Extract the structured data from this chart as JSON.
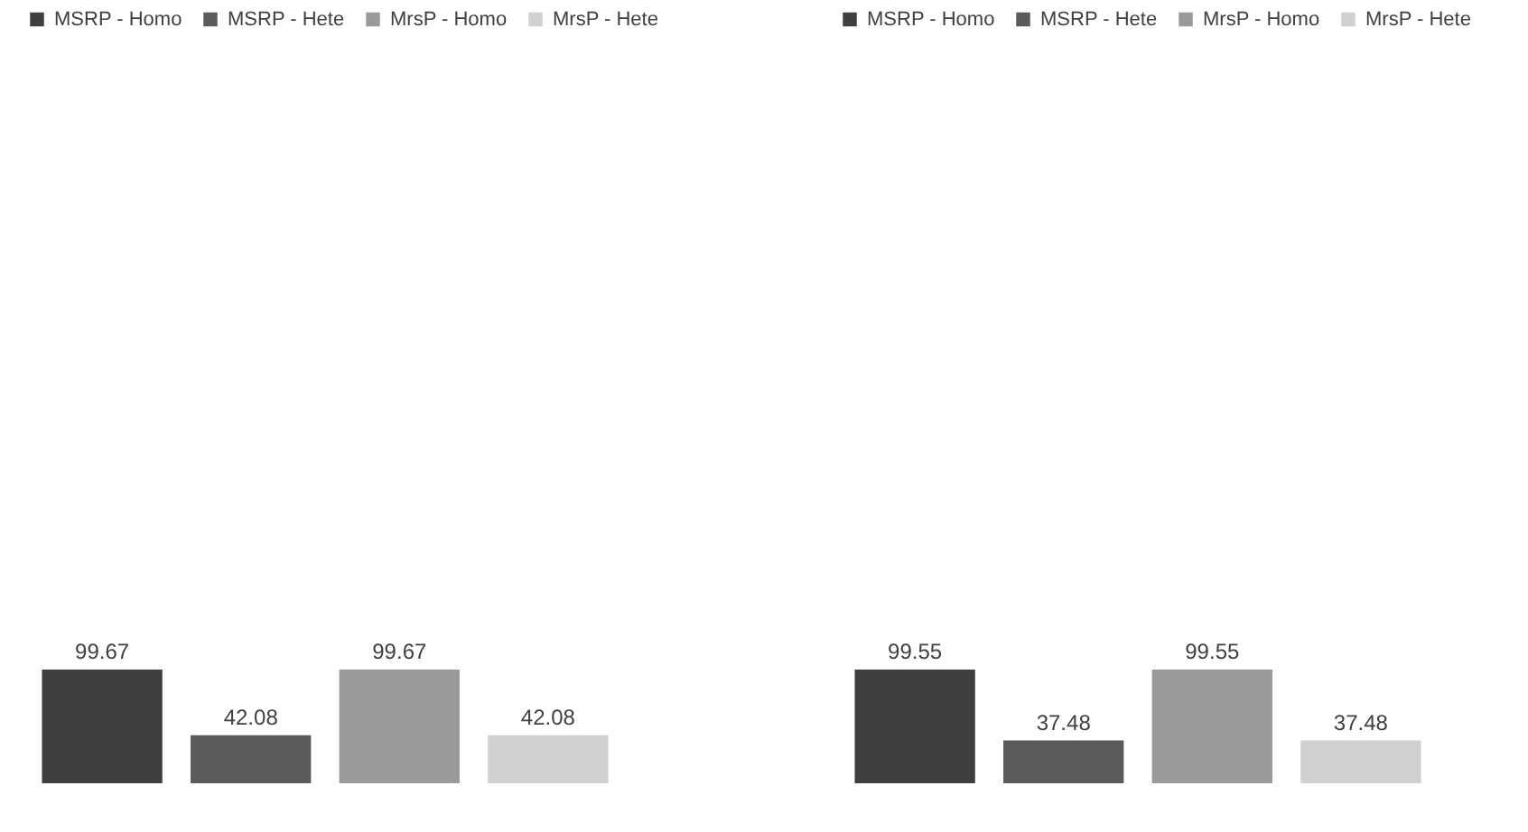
{
  "chart_data": [
    {
      "type": "bar",
      "categories": [
        null
      ],
      "legend": "top",
      "data_labels": true,
      "series": [
        {
          "name": "MSRP - Homo",
          "color": "#3f3f3f",
          "values": [
            99.67
          ]
        },
        {
          "name": "MSRP - Hete",
          "color": "#5b5b5b",
          "values": [
            42.08
          ]
        },
        {
          "name": "MrsP - Homo",
          "color": "#9a9a9a",
          "values": [
            99.67
          ]
        },
        {
          "name": "MrsP - Hete",
          "color": "#d0d0d0",
          "values": [
            42.08
          ]
        }
      ]
    },
    {
      "type": "bar",
      "categories": [
        null
      ],
      "legend": "top",
      "data_labels": true,
      "series": [
        {
          "name": "MSRP - Homo",
          "color": "#3f3f3f",
          "values": [
            99.55
          ]
        },
        {
          "name": "MSRP - Hete",
          "color": "#5b5b5b",
          "values": [
            37.48
          ]
        },
        {
          "name": "MrsP - Homo",
          "color": "#9a9a9a",
          "values": [
            99.55
          ]
        },
        {
          "name": "MrsP - Hete",
          "color": "#d0d0d0",
          "values": [
            37.48
          ]
        }
      ]
    }
  ]
}
